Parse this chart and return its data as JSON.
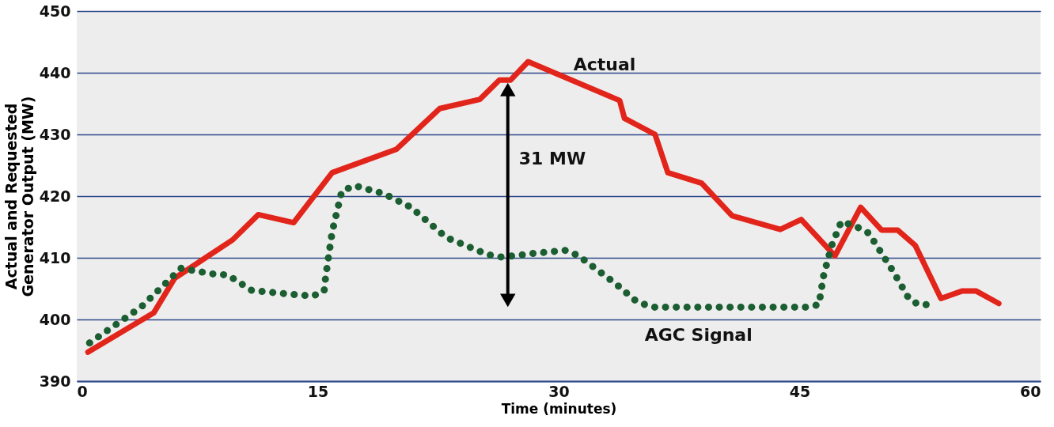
{
  "chart_data": {
    "type": "line",
    "xlabel": "Time (minutes)",
    "ylabel": "Actual and Requested\nGenerator Output (MW)",
    "xlim": [
      0,
      60
    ],
    "xticks": [
      0,
      15,
      30,
      45,
      60
    ],
    "ylim": [
      390,
      450
    ],
    "yticks": [
      390,
      400,
      410,
      420,
      430,
      440,
      450
    ],
    "grid": "y",
    "series": [
      {
        "name": "Actual",
        "color": "#e2251b",
        "line_style": "solid",
        "x": [
          0.7,
          4.8,
          6.1,
          9.7,
          11.3,
          13.5,
          15.9,
          19.9,
          22.6,
          25.1,
          26.3,
          27.0,
          28.1,
          33.8,
          34.1,
          36.0,
          36.8,
          38.9,
          40.8,
          43.8,
          45.1,
          47.2,
          48.8,
          50.1,
          51.1,
          52.2,
          53.8,
          55.1,
          56.0,
          57.4
        ],
        "values": [
          394.7,
          401.1,
          406.7,
          412.9,
          417.0,
          415.7,
          423.8,
          427.6,
          434.2,
          435.7,
          438.8,
          438.8,
          441.8,
          435.5,
          432.6,
          430.0,
          423.8,
          422.1,
          416.8,
          414.6,
          416.2,
          410.3,
          418.2,
          414.5,
          414.5,
          412.0,
          403.4,
          404.6,
          404.6,
          402.6
        ]
      },
      {
        "name": "AGC Signal",
        "color": "#1b5e32",
        "line_style": "dotted",
        "x": [
          0.8,
          4.0,
          6.5,
          8.4,
          9.4,
          10.9,
          13.7,
          14.7,
          15.4,
          15.5,
          15.9,
          16.5,
          17.3,
          19.1,
          20.8,
          23.0,
          25.6,
          26.5,
          28.4,
          30.4,
          31.2,
          33.5,
          34.9,
          35.9,
          45.4,
          46.2,
          46.5,
          47.0,
          47.6,
          48.5,
          49.3,
          50.8,
          51.8,
          52.4,
          53.4
        ],
        "values": [
          396.2,
          402.0,
          408.3,
          407.4,
          407.2,
          404.7,
          404.0,
          403.8,
          404.6,
          407.0,
          414.2,
          420.8,
          421.7,
          420.4,
          418.2,
          413.3,
          410.5,
          410.1,
          410.7,
          411.2,
          410.4,
          405.9,
          402.8,
          402.0,
          402.0,
          402.4,
          407.2,
          412.0,
          415.9,
          415.1,
          414.0,
          407.9,
          403.4,
          402.4,
          402.4
        ]
      }
    ],
    "annotations": [
      "31 MW"
    ]
  }
}
